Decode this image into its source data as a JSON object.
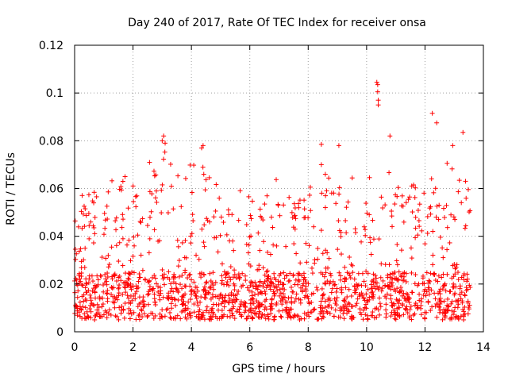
{
  "chart_data": {
    "type": "scatter",
    "title": "Day 240 of 2017, Rate Of TEC Index for receiver onsa",
    "xlabel": "GPS time / hours",
    "ylabel": "ROTI / TECUs",
    "xlim": [
      0,
      14
    ],
    "ylim": [
      0,
      0.12
    ],
    "grid": true,
    "marker": "+",
    "color": "#ff0000",
    "x_ticks": [
      0,
      2,
      4,
      6,
      8,
      10,
      12,
      14
    ],
    "x_tick_labels": [
      "0",
      "2",
      "4",
      "6",
      "8",
      "10",
      "12",
      "14"
    ],
    "y_ticks": [
      0,
      0.02,
      0.04,
      0.06,
      0.08,
      0.1,
      0.12
    ],
    "y_tick_labels": [
      "0",
      "0.02",
      "0.04",
      "0.06",
      "0.08",
      "0.1",
      "0.12"
    ],
    "series": [
      {
        "name": "ROTI",
        "x_range": [
          0,
          13.55
        ],
        "count": 1600,
        "baseline_band": [
          0.005,
          0.025
        ],
        "envelope": [
          [
            0.0,
            0.055
          ],
          [
            0.5,
            0.06
          ],
          [
            1.0,
            0.062
          ],
          [
            1.5,
            0.065
          ],
          [
            2.0,
            0.07
          ],
          [
            2.5,
            0.072
          ],
          [
            3.0,
            0.08
          ],
          [
            3.5,
            0.068
          ],
          [
            4.0,
            0.074
          ],
          [
            4.5,
            0.07
          ],
          [
            5.0,
            0.06
          ],
          [
            5.5,
            0.058
          ],
          [
            6.0,
            0.062
          ],
          [
            6.5,
            0.064
          ],
          [
            7.0,
            0.066
          ],
          [
            7.5,
            0.06
          ],
          [
            8.0,
            0.06
          ],
          [
            8.5,
            0.066
          ],
          [
            9.0,
            0.07
          ],
          [
            9.5,
            0.066
          ],
          [
            10.0,
            0.065
          ],
          [
            10.5,
            0.07
          ],
          [
            11.0,
            0.064
          ],
          [
            11.5,
            0.062
          ],
          [
            12.0,
            0.064
          ],
          [
            12.5,
            0.068
          ],
          [
            13.0,
            0.074
          ],
          [
            13.55,
            0.062
          ]
        ],
        "outliers": [
          [
            3.05,
            0.082
          ],
          [
            3.1,
            0.079
          ],
          [
            3.0,
            0.08
          ],
          [
            4.4,
            0.078
          ],
          [
            4.35,
            0.077
          ],
          [
            8.45,
            0.0785
          ],
          [
            8.45,
            0.07
          ],
          [
            9.05,
            0.078
          ],
          [
            10.35,
            0.1045
          ],
          [
            10.38,
            0.1035
          ],
          [
            10.38,
            0.1005
          ],
          [
            10.4,
            0.097
          ],
          [
            10.4,
            0.095
          ],
          [
            10.8,
            0.082
          ],
          [
            12.25,
            0.0915
          ],
          [
            12.4,
            0.0875
          ],
          [
            12.95,
            0.078
          ],
          [
            13.3,
            0.0835
          ]
        ]
      }
    ]
  }
}
